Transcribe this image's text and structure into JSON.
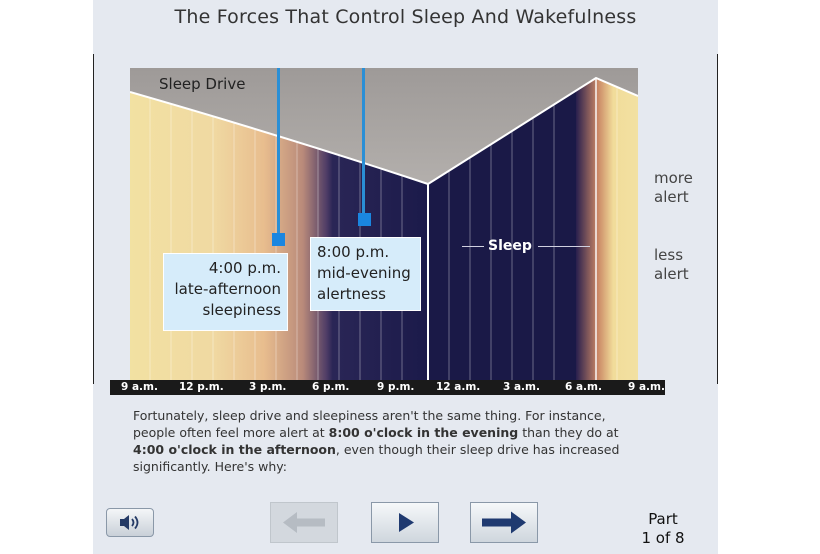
{
  "title": "The Forces That Control Sleep And Wakefulness",
  "chart": {
    "drive_label": "Sleep Drive",
    "sleep_label": "Sleep",
    "more_alert": "more alert",
    "less_alert": "less alert",
    "more_alert_lines": [
      "more",
      "alert"
    ],
    "less_alert_lines": [
      "less",
      "alert"
    ],
    "callout_4pm": [
      "4:00 p.m.",
      "late-afternoon",
      "sleepiness"
    ],
    "callout_8pm": [
      "8:00 p.m.",
      "mid-evening",
      "alertness"
    ],
    "time_ticks": [
      "9 a.m.",
      "12 p.m.",
      "3 p.m.",
      "6 p.m.",
      "9 p.m.",
      "12 a.m.",
      "3 a.m.",
      "6 a.m.",
      "9 a.m."
    ]
  },
  "paragraph": {
    "t1": "Fortunately, sleep drive and sleepiness aren't the same thing. For instance, people often feel more alert at ",
    "b1": "8:00 o'clock in the evening",
    "t2": " than they do at ",
    "b2": "4:00 o'clock in the afternoon",
    "t3": ", even though their sleep drive has increased significantly. Here's why:"
  },
  "controls": {
    "audio_icon": "speaker-icon",
    "back_icon": "arrow-left-icon",
    "play_icon": "play-icon",
    "next_icon": "arrow-right-icon"
  },
  "part": {
    "line1": "Part",
    "line2": "1 of 8"
  },
  "colors": {
    "accent_blue": "#1a86e0",
    "callout_bg": "#d6ecfa",
    "night": "#141640"
  }
}
